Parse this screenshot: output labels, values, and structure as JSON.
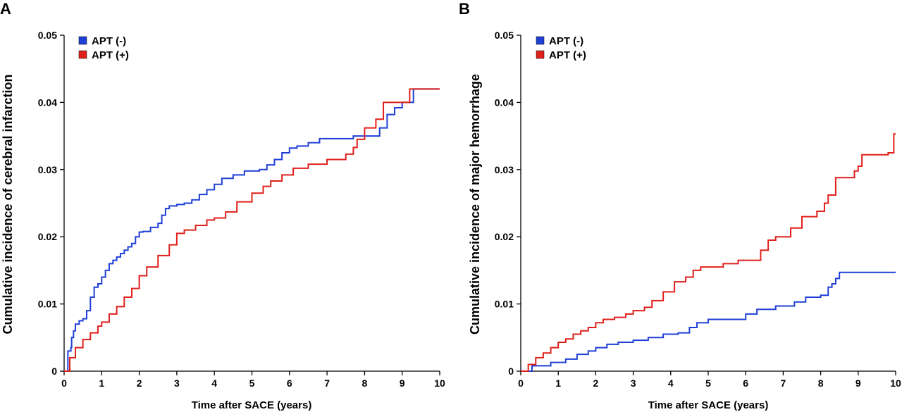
{
  "chart_data": [
    {
      "panel": "A",
      "type": "line",
      "step": true,
      "xlabel": "Time after SACE (years)",
      "ylabel": "Cumulative incidence of cerebral infarction",
      "xlim": [
        0,
        10
      ],
      "ylim": [
        0,
        0.05
      ],
      "x_ticks": [
        "0",
        "1",
        "2",
        "3",
        "4",
        "5",
        "6",
        "7",
        "8",
        "9",
        "10"
      ],
      "y_ticks": [
        "0",
        "0.01",
        "0.02",
        "0.03",
        "0.04",
        "0.05"
      ],
      "legend_position": "top-left",
      "series": [
        {
          "name": "APT (-)",
          "color": "#1f3fd6",
          "points": [
            [
              0,
              0
            ],
            [
              0.08,
              0
            ],
            [
              0.1,
              0.003
            ],
            [
              0.18,
              0.0035
            ],
            [
              0.2,
              0.005
            ],
            [
              0.25,
              0.006
            ],
            [
              0.3,
              0.007
            ],
            [
              0.4,
              0.0075
            ],
            [
              0.5,
              0.0078
            ],
            [
              0.6,
              0.009
            ],
            [
              0.7,
              0.011
            ],
            [
              0.8,
              0.0125
            ],
            [
              0.9,
              0.013
            ],
            [
              1.0,
              0.014
            ],
            [
              1.1,
              0.015
            ],
            [
              1.2,
              0.016
            ],
            [
              1.3,
              0.0165
            ],
            [
              1.4,
              0.017
            ],
            [
              1.5,
              0.0175
            ],
            [
              1.6,
              0.018
            ],
            [
              1.7,
              0.0185
            ],
            [
              1.8,
              0.019
            ],
            [
              1.9,
              0.02
            ],
            [
              2.0,
              0.0207
            ],
            [
              2.1,
              0.0208
            ],
            [
              2.3,
              0.0214
            ],
            [
              2.5,
              0.022
            ],
            [
              2.6,
              0.0232
            ],
            [
              2.7,
              0.0242
            ],
            [
              2.8,
              0.0246
            ],
            [
              3.0,
              0.0248
            ],
            [
              3.2,
              0.025
            ],
            [
              3.4,
              0.0255
            ],
            [
              3.6,
              0.0263
            ],
            [
              3.8,
              0.027
            ],
            [
              4.0,
              0.0278
            ],
            [
              4.2,
              0.0287
            ],
            [
              4.5,
              0.0292
            ],
            [
              4.8,
              0.0298
            ],
            [
              5.2,
              0.03
            ],
            [
              5.4,
              0.0307
            ],
            [
              5.6,
              0.0315
            ],
            [
              5.8,
              0.0325
            ],
            [
              6.0,
              0.0332
            ],
            [
              6.2,
              0.0335
            ],
            [
              6.5,
              0.034
            ],
            [
              6.8,
              0.0346
            ],
            [
              7.2,
              0.0346
            ],
            [
              7.5,
              0.0346
            ],
            [
              7.7,
              0.035
            ],
            [
              8.4,
              0.0362
            ],
            [
              8.6,
              0.0382
            ],
            [
              8.8,
              0.0392
            ],
            [
              9.0,
              0.04
            ],
            [
              9.3,
              0.042
            ],
            [
              10.0,
              0.042
            ]
          ]
        },
        {
          "name": "APT (+)",
          "color": "#e0201b",
          "points": [
            [
              0,
              0
            ],
            [
              0.08,
              0
            ],
            [
              0.15,
              0.002
            ],
            [
              0.3,
              0.0035
            ],
            [
              0.5,
              0.0047
            ],
            [
              0.7,
              0.0057
            ],
            [
              0.9,
              0.0067
            ],
            [
              1.0,
              0.0073
            ],
            [
              1.2,
              0.0085
            ],
            [
              1.4,
              0.0096
            ],
            [
              1.6,
              0.011
            ],
            [
              1.8,
              0.0123
            ],
            [
              2.0,
              0.0142
            ],
            [
              2.2,
              0.0155
            ],
            [
              2.5,
              0.0172
            ],
            [
              2.8,
              0.0188
            ],
            [
              3.0,
              0.0205
            ],
            [
              3.2,
              0.021
            ],
            [
              3.5,
              0.0217
            ],
            [
              3.8,
              0.0225
            ],
            [
              4.0,
              0.0228
            ],
            [
              4.3,
              0.0237
            ],
            [
              4.6,
              0.0252
            ],
            [
              5.0,
              0.0265
            ],
            [
              5.3,
              0.0275
            ],
            [
              5.5,
              0.0283
            ],
            [
              5.8,
              0.0292
            ],
            [
              6.1,
              0.0302
            ],
            [
              6.5,
              0.0308
            ],
            [
              7.0,
              0.0315
            ],
            [
              7.3,
              0.0315
            ],
            [
              7.5,
              0.0323
            ],
            [
              7.7,
              0.0333
            ],
            [
              7.8,
              0.0345
            ],
            [
              8.0,
              0.0362
            ],
            [
              8.3,
              0.0375
            ],
            [
              8.5,
              0.04
            ],
            [
              9.2,
              0.042
            ],
            [
              10.0,
              0.042
            ]
          ]
        }
      ]
    },
    {
      "panel": "B",
      "type": "line",
      "step": true,
      "xlabel": "Time after SACE (years)",
      "ylabel": "Cumulative incidence of major hemorrhage",
      "xlim": [
        0,
        10
      ],
      "ylim": [
        0,
        0.05
      ],
      "x_ticks": [
        "0",
        "1",
        "2",
        "3",
        "4",
        "5",
        "6",
        "7",
        "8",
        "9",
        "10"
      ],
      "y_ticks": [
        "0",
        "0.01",
        "0.02",
        "0.03",
        "0.04",
        "0.05"
      ],
      "legend_position": "top-left",
      "series": [
        {
          "name": "APT (-)",
          "color": "#1f3fd6",
          "points": [
            [
              0,
              0
            ],
            [
              0.2,
              0
            ],
            [
              0.3,
              0.0008
            ],
            [
              0.8,
              0.0013
            ],
            [
              1.2,
              0.0018
            ],
            [
              1.5,
              0.0025
            ],
            [
              1.8,
              0.003
            ],
            [
              2.0,
              0.0035
            ],
            [
              2.3,
              0.004
            ],
            [
              2.6,
              0.0043
            ],
            [
              3.0,
              0.0046
            ],
            [
              3.4,
              0.005
            ],
            [
              3.8,
              0.0055
            ],
            [
              4.2,
              0.0057
            ],
            [
              4.5,
              0.0065
            ],
            [
              4.7,
              0.0072
            ],
            [
              5.0,
              0.0077
            ],
            [
              5.7,
              0.0077
            ],
            [
              6.0,
              0.0085
            ],
            [
              6.3,
              0.0092
            ],
            [
              6.8,
              0.0097
            ],
            [
              7.3,
              0.0103
            ],
            [
              7.6,
              0.011
            ],
            [
              8.0,
              0.0113
            ],
            [
              8.2,
              0.0125
            ],
            [
              8.3,
              0.013
            ],
            [
              8.4,
              0.0138
            ],
            [
              8.5,
              0.0147
            ],
            [
              10.0,
              0.0147
            ]
          ]
        },
        {
          "name": "APT (+)",
          "color": "#e0201b",
          "points": [
            [
              0,
              0
            ],
            [
              0.1,
              0
            ],
            [
              0.2,
              0.001
            ],
            [
              0.4,
              0.002
            ],
            [
              0.6,
              0.0027
            ],
            [
              0.8,
              0.0035
            ],
            [
              1.0,
              0.0043
            ],
            [
              1.2,
              0.0048
            ],
            [
              1.4,
              0.0055
            ],
            [
              1.6,
              0.006
            ],
            [
              1.8,
              0.0065
            ],
            [
              2.0,
              0.0072
            ],
            [
              2.2,
              0.0077
            ],
            [
              2.5,
              0.008
            ],
            [
              2.8,
              0.0085
            ],
            [
              3.0,
              0.009
            ],
            [
              3.3,
              0.0095
            ],
            [
              3.5,
              0.0105
            ],
            [
              3.8,
              0.0118
            ],
            [
              4.1,
              0.0133
            ],
            [
              4.4,
              0.014
            ],
            [
              4.6,
              0.015
            ],
            [
              4.8,
              0.0155
            ],
            [
              5.4,
              0.016
            ],
            [
              5.8,
              0.0165
            ],
            [
              6.4,
              0.018
            ],
            [
              6.6,
              0.0195
            ],
            [
              6.8,
              0.02
            ],
            [
              7.2,
              0.0213
            ],
            [
              7.5,
              0.023
            ],
            [
              7.9,
              0.0238
            ],
            [
              8.1,
              0.025
            ],
            [
              8.2,
              0.0262
            ],
            [
              8.4,
              0.0288
            ],
            [
              8.9,
              0.0298
            ],
            [
              9.0,
              0.0305
            ],
            [
              9.1,
              0.0322
            ],
            [
              9.8,
              0.0325
            ],
            [
              9.95,
              0.0353
            ],
            [
              10.0,
              0.0353
            ]
          ]
        }
      ]
    }
  ],
  "panels": [
    {
      "letter": "A"
    },
    {
      "letter": "B"
    }
  ]
}
